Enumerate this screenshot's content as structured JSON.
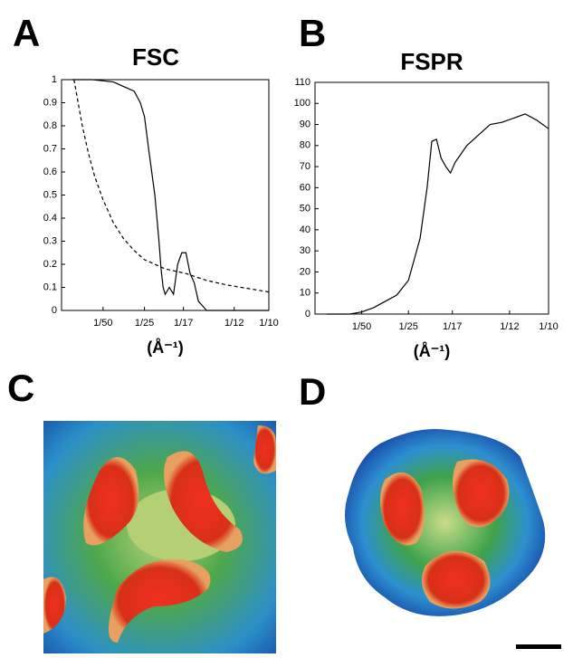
{
  "panels": {
    "a": "A",
    "b": "B",
    "c": "C",
    "d": "D"
  },
  "chart_data": [
    {
      "type": "line",
      "title": "FSC",
      "x_label": "(Å⁻¹)",
      "xlim": [
        0,
        0.1
      ],
      "ylim": [
        0,
        1
      ],
      "xticks": [
        {
          "value": 0.02,
          "label": "1/50"
        },
        {
          "value": 0.04,
          "label": "1/25"
        },
        {
          "value": 0.0588,
          "label": "1/17"
        },
        {
          "value": 0.0833,
          "label": "1/12"
        },
        {
          "value": 0.1,
          "label": "1/10"
        }
      ],
      "yticks": [
        0,
        0.1,
        0.2,
        0.3,
        0.4,
        0.5,
        0.6,
        0.7,
        0.8,
        0.9,
        1
      ],
      "series": [
        {
          "color": "#000000",
          "line_style": "solid",
          "x": [
            0.005,
            0.015,
            0.025,
            0.03,
            0.035,
            0.038,
            0.04,
            0.042,
            0.045,
            0.047,
            0.048,
            0.049,
            0.05,
            0.052,
            0.054,
            0.056,
            0.058,
            0.06,
            0.062,
            0.064,
            0.066,
            0.068,
            0.07,
            0.08,
            0.09,
            0.1
          ],
          "values": [
            1,
            1,
            0.99,
            0.97,
            0.95,
            0.9,
            0.84,
            0.7,
            0.5,
            0.3,
            0.18,
            0.1,
            0.07,
            0.1,
            0.07,
            0.2,
            0.25,
            0.25,
            0.16,
            0.12,
            0.04,
            0.02,
            0,
            0,
            0,
            0
          ]
        },
        {
          "color": "#000000",
          "line_style": "dashed",
          "x": [
            0.006,
            0.008,
            0.01,
            0.013,
            0.016,
            0.02,
            0.025,
            0.03,
            0.035,
            0.04,
            0.045,
            0.05,
            0.06,
            0.07,
            0.08,
            0.09,
            0.1
          ],
          "values": [
            1,
            0.9,
            0.8,
            0.68,
            0.58,
            0.48,
            0.38,
            0.31,
            0.26,
            0.22,
            0.2,
            0.18,
            0.16,
            0.13,
            0.11,
            0.095,
            0.08
          ]
        }
      ]
    },
    {
      "type": "line",
      "title": "FSPR",
      "x_label": "(Å⁻¹)",
      "xlim": [
        0,
        0.1
      ],
      "ylim": [
        0,
        110
      ],
      "xticks": [
        {
          "value": 0.02,
          "label": "1/50"
        },
        {
          "value": 0.04,
          "label": "1/25"
        },
        {
          "value": 0.0588,
          "label": "1/17"
        },
        {
          "value": 0.0833,
          "label": "1/12"
        },
        {
          "value": 0.1,
          "label": "1/10"
        }
      ],
      "yticks": [
        0,
        10,
        20,
        30,
        40,
        50,
        60,
        70,
        80,
        90,
        100,
        110
      ],
      "series": [
        {
          "color": "#000000",
          "line_style": "solid",
          "x": [
            0.005,
            0.015,
            0.02,
            0.025,
            0.03,
            0.035,
            0.04,
            0.045,
            0.048,
            0.05,
            0.052,
            0.054,
            0.056,
            0.058,
            0.06,
            0.065,
            0.07,
            0.075,
            0.08,
            0.085,
            0.09,
            0.095,
            0.1
          ],
          "values": [
            0,
            0,
            1,
            3,
            6,
            9,
            16,
            36,
            60,
            82,
            83,
            74,
            70,
            67,
            72,
            80,
            85,
            90,
            91,
            93,
            95,
            92,
            88
          ]
        }
      ]
    }
  ]
}
